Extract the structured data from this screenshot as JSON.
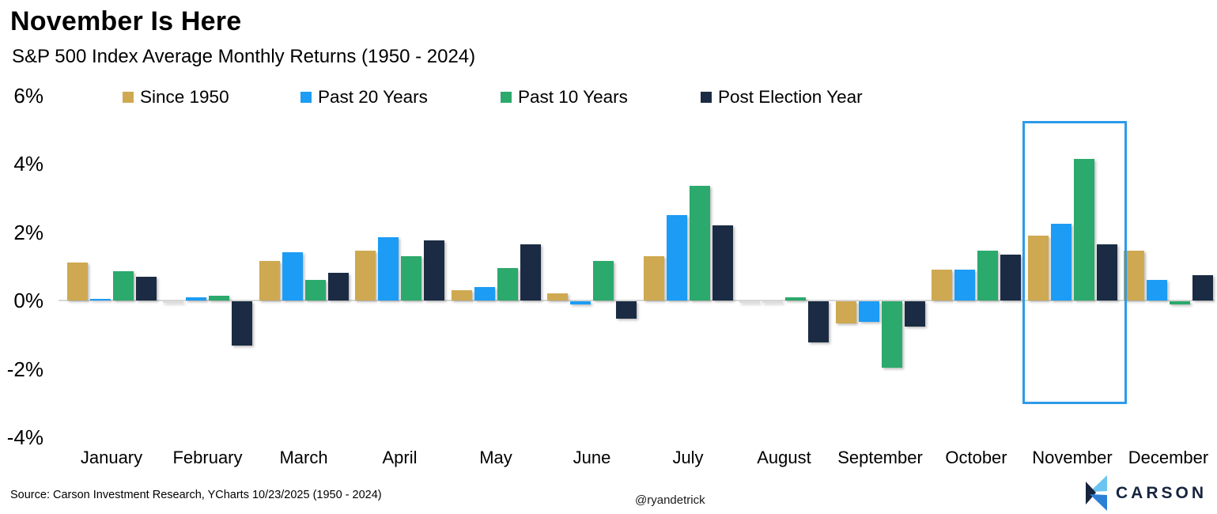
{
  "chart_data": {
    "type": "bar",
    "title": "November Is Here",
    "subtitle": "S&P 500 Index Average Monthly Returns (1950 - 2024)",
    "categories": [
      "January",
      "February",
      "March",
      "April",
      "May",
      "June",
      "July",
      "August",
      "September",
      "October",
      "November",
      "December"
    ],
    "series": [
      {
        "name": "Since 1950",
        "color": "#CEA951",
        "values": [
          1.1,
          0.0,
          1.15,
          1.45,
          0.3,
          0.2,
          1.3,
          0.0,
          -0.65,
          0.9,
          1.9,
          1.45
        ]
      },
      {
        "name": "Past 20 Years",
        "color": "#1C9CF4",
        "values": [
          0.05,
          0.1,
          1.4,
          1.85,
          0.4,
          -0.1,
          2.5,
          0.0,
          -0.6,
          0.9,
          2.25,
          0.6
        ]
      },
      {
        "name": "Past 10 Years",
        "color": "#2CA96C",
        "values": [
          0.85,
          0.15,
          0.6,
          1.3,
          0.95,
          1.15,
          3.35,
          0.1,
          -1.95,
          1.45,
          4.15,
          -0.1
        ]
      },
      {
        "name": "Post Election Year",
        "color": "#1B2B43",
        "values": [
          0.7,
          -1.3,
          0.8,
          1.75,
          1.65,
          -0.5,
          2.2,
          -1.2,
          -0.75,
          1.35,
          1.65,
          0.75
        ]
      }
    ],
    "ylim": [
      -4,
      6
    ],
    "yticks": [
      {
        "label": "6%",
        "value": 6
      },
      {
        "label": "4%",
        "value": 4
      },
      {
        "label": "2%",
        "value": 2
      },
      {
        "label": "0%",
        "value": 0
      },
      {
        "label": "-2%",
        "value": -2
      },
      {
        "label": "-4%",
        "value": -4
      }
    ],
    "grid": "zero-line-only",
    "legend_position": "top",
    "highlight": {
      "month": "November",
      "border_color": "#2D9BE9"
    }
  },
  "footer": {
    "source": "Source: Carson Investment Research, YCharts 10/23/2025 (1950 - 2024)",
    "handle": "@ryandetrick",
    "logo_text": "CARSON"
  },
  "logo_colors": {
    "light_blue": "#6CC5F0",
    "mid_blue": "#2C7FD6",
    "navy": "#16243E"
  }
}
